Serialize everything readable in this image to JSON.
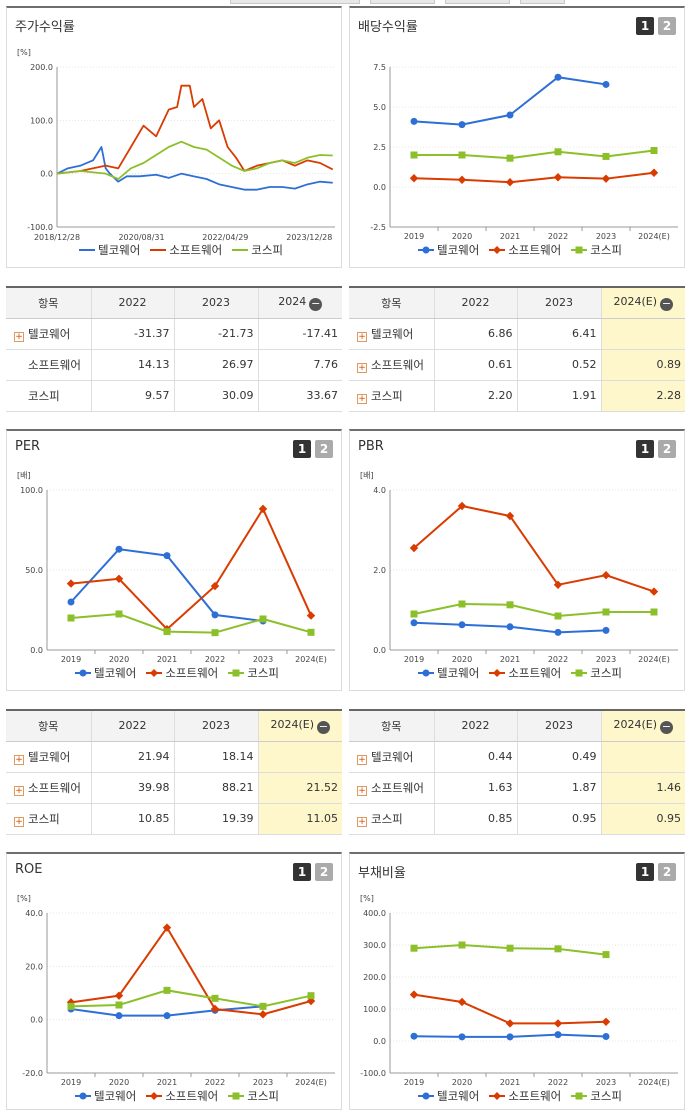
{
  "colors": {
    "telco": "#2e6fd6",
    "software": "#d93b00",
    "kospi": "#8bc02a"
  },
  "legend": [
    "텔코웨어",
    "소프트웨어",
    "코스피"
  ],
  "button_labels": [
    "1",
    "2"
  ],
  "panels": {
    "stock": {
      "title": "주가수익률",
      "unit": "[%]"
    },
    "div": {
      "title": "배당수익률",
      "unit": ""
    },
    "per": {
      "title": "PER",
      "unit": "[배]"
    },
    "pbr": {
      "title": "PBR",
      "unit": "[배]"
    },
    "roe": {
      "title": "ROE",
      "unit": "[%]"
    },
    "debt": {
      "title": "부채비율",
      "unit": "[%]"
    }
  },
  "tables": {
    "stock": {
      "header": [
        "항목",
        "2022",
        "2023",
        "2024"
      ],
      "rows": [
        {
          "name": "텔코웨어",
          "plus": true,
          "values": [
            "-31.37",
            "-21.73",
            "-17.41"
          ]
        },
        {
          "name": "소프트웨어",
          "plus": false,
          "values": [
            "14.13",
            "26.97",
            "7.76"
          ]
        },
        {
          "name": "코스피",
          "plus": false,
          "values": [
            "9.57",
            "30.09",
            "33.67"
          ]
        }
      ]
    },
    "div": {
      "header": [
        "항목",
        "2022",
        "2023",
        "2024(E)"
      ],
      "rows": [
        {
          "name": "텔코웨어",
          "plus": true,
          "values": [
            "6.86",
            "6.41",
            ""
          ]
        },
        {
          "name": "소프트웨어",
          "plus": true,
          "values": [
            "0.61",
            "0.52",
            "0.89"
          ]
        },
        {
          "name": "코스피",
          "plus": true,
          "values": [
            "2.20",
            "1.91",
            "2.28"
          ]
        }
      ]
    },
    "per": {
      "header": [
        "항목",
        "2022",
        "2023",
        "2024(E)"
      ],
      "rows": [
        {
          "name": "텔코웨어",
          "plus": true,
          "values": [
            "21.94",
            "18.14",
            ""
          ]
        },
        {
          "name": "소프트웨어",
          "plus": true,
          "values": [
            "39.98",
            "88.21",
            "21.52"
          ]
        },
        {
          "name": "코스피",
          "plus": true,
          "values": [
            "10.85",
            "19.39",
            "11.05"
          ]
        }
      ]
    },
    "pbr": {
      "header": [
        "항목",
        "2022",
        "2023",
        "2024(E)"
      ],
      "rows": [
        {
          "name": "텔코웨어",
          "plus": true,
          "values": [
            "0.44",
            "0.49",
            ""
          ]
        },
        {
          "name": "소프트웨어",
          "plus": true,
          "values": [
            "1.63",
            "1.87",
            "1.46"
          ]
        },
        {
          "name": "코스피",
          "plus": true,
          "values": [
            "0.85",
            "0.95",
            "0.95"
          ]
        }
      ]
    }
  },
  "chart_data": [
    {
      "id": "stock",
      "type": "line",
      "title": "주가수익률",
      "ylabel": "[%]",
      "ylim": [
        -100,
        200
      ],
      "yticks": [
        "200.0",
        "100.0",
        "0.0",
        "-100.0"
      ],
      "xticks": [
        "2018/12/28",
        "2020/08/31",
        "2022/04/29",
        "2023/12/28"
      ],
      "series": [
        {
          "name": "텔코웨어",
          "x": [
            "2018/12/28",
            "2019/03",
            "2019/06",
            "2019/09",
            "2019/11",
            "2019/12",
            "2020/01",
            "2020/03",
            "2020/05",
            "2020/08",
            "2020/12",
            "2021/03",
            "2021/06",
            "2021/09",
            "2021/12",
            "2022/03",
            "2022/06",
            "2022/09",
            "2022/12",
            "2023/03",
            "2023/06",
            "2023/09",
            "2023/12",
            "2024/03",
            "2024/06"
          ],
          "y": [
            0,
            10,
            15,
            25,
            50,
            10,
            0,
            -15,
            -5,
            -5,
            -2,
            -8,
            0,
            -5,
            -10,
            -20,
            -25,
            -30,
            -30,
            -25,
            -25,
            -28,
            -20,
            -15,
            -17
          ]
        },
        {
          "name": "소프트웨어",
          "x": [
            "2018/12/28",
            "2019/06",
            "2019/12",
            "2020/03",
            "2020/06",
            "2020/09",
            "2020/12",
            "2021/03",
            "2021/05",
            "2021/06",
            "2021/08",
            "2021/09",
            "2021/11",
            "2022/01",
            "2022/03",
            "2022/05",
            "2022/07",
            "2022/09",
            "2022/12",
            "2023/03",
            "2023/06",
            "2023/09",
            "2023/12",
            "2024/03",
            "2024/06"
          ],
          "y": [
            0,
            5,
            15,
            10,
            50,
            90,
            70,
            120,
            125,
            165,
            165,
            125,
            140,
            85,
            100,
            50,
            30,
            5,
            15,
            20,
            25,
            15,
            25,
            20,
            8
          ]
        },
        {
          "name": "코스피",
          "x": [
            "2018/12/28",
            "2019/06",
            "2019/12",
            "2020/03",
            "2020/06",
            "2020/09",
            "2020/12",
            "2021/03",
            "2021/06",
            "2021/09",
            "2021/12",
            "2022/03",
            "2022/06",
            "2022/09",
            "2022/12",
            "2023/03",
            "2023/06",
            "2023/09",
            "2023/12",
            "2024/03",
            "2024/06"
          ],
          "y": [
            0,
            5,
            0,
            -10,
            10,
            20,
            35,
            50,
            60,
            50,
            45,
            30,
            15,
            5,
            10,
            20,
            25,
            20,
            30,
            35,
            34
          ]
        }
      ]
    },
    {
      "id": "div",
      "type": "line",
      "title": "배당수익률",
      "ylim": [
        -2.5,
        7.5
      ],
      "yticks": [
        "7.5",
        "5.0",
        "2.5",
        "0.0",
        "-2.5"
      ],
      "categories": [
        "2019",
        "2020",
        "2021",
        "2022",
        "2023",
        "2024(E)"
      ],
      "series": [
        {
          "name": "텔코웨어",
          "values": [
            4.1,
            3.9,
            4.5,
            6.86,
            6.41,
            null
          ]
        },
        {
          "name": "소프트웨어",
          "values": [
            0.55,
            0.45,
            0.3,
            0.61,
            0.52,
            0.89
          ]
        },
        {
          "name": "코스피",
          "values": [
            2.0,
            2.0,
            1.8,
            2.2,
            1.91,
            2.28
          ]
        }
      ]
    },
    {
      "id": "per",
      "type": "line",
      "title": "PER",
      "ylabel": "[배]",
      "ylim": [
        0,
        100
      ],
      "yticks": [
        "100.0",
        "50.0",
        "0.0"
      ],
      "categories": [
        "2019",
        "2020",
        "2021",
        "2022",
        "2023",
        "2024(E)"
      ],
      "series": [
        {
          "name": "텔코웨어",
          "values": [
            30,
            63,
            59,
            21.94,
            18.14,
            null
          ]
        },
        {
          "name": "소프트웨어",
          "values": [
            41.5,
            44.5,
            13,
            39.98,
            88.21,
            21.52
          ]
        },
        {
          "name": "코스피",
          "values": [
            20,
            22.5,
            11.5,
            10.85,
            19.39,
            11.05
          ]
        }
      ]
    },
    {
      "id": "pbr",
      "type": "line",
      "title": "PBR",
      "ylabel": "[배]",
      "ylim": [
        0,
        4
      ],
      "yticks": [
        "4.0",
        "2.0",
        "0.0"
      ],
      "categories": [
        "2019",
        "2020",
        "2021",
        "2022",
        "2023",
        "2024(E)"
      ],
      "series": [
        {
          "name": "텔코웨어",
          "values": [
            0.68,
            0.63,
            0.58,
            0.44,
            0.49,
            null
          ]
        },
        {
          "name": "소프트웨어",
          "values": [
            2.55,
            3.6,
            3.35,
            1.63,
            1.87,
            1.46
          ]
        },
        {
          "name": "코스피",
          "values": [
            0.9,
            1.15,
            1.13,
            0.85,
            0.95,
            0.95
          ]
        }
      ]
    },
    {
      "id": "roe",
      "type": "line",
      "title": "ROE",
      "ylabel": "[%]",
      "ylim": [
        -20,
        40
      ],
      "yticks": [
        "40.0",
        "20.0",
        "0.0",
        "-20.0"
      ],
      "categories": [
        "2019",
        "2020",
        "2021",
        "2022",
        "2023",
        "2024(E)"
      ],
      "series": [
        {
          "name": "텔코웨어",
          "values": [
            4,
            1.5,
            1.5,
            3.5,
            5,
            null
          ]
        },
        {
          "name": "소프트웨어",
          "values": [
            6.5,
            9,
            34.5,
            4,
            2,
            7
          ]
        },
        {
          "name": "코스피",
          "values": [
            5,
            5.5,
            11,
            8,
            5,
            9
          ]
        }
      ]
    },
    {
      "id": "debt",
      "type": "line",
      "title": "부채비율",
      "ylabel": "[%]",
      "ylim": [
        -100,
        400
      ],
      "yticks": [
        "400.0",
        "300.0",
        "200.0",
        "100.0",
        "0.0",
        "-100.0"
      ],
      "categories": [
        "2019",
        "2020",
        "2021",
        "2022",
        "2023",
        "2024(E)"
      ],
      "series": [
        {
          "name": "텔코웨어",
          "values": [
            15,
            13,
            13,
            20,
            14,
            null
          ]
        },
        {
          "name": "소프트웨어",
          "values": [
            145,
            122,
            55,
            55,
            60,
            null
          ]
        },
        {
          "name": "코스피",
          "values": [
            290,
            300,
            290,
            288,
            270,
            null
          ]
        }
      ]
    }
  ]
}
